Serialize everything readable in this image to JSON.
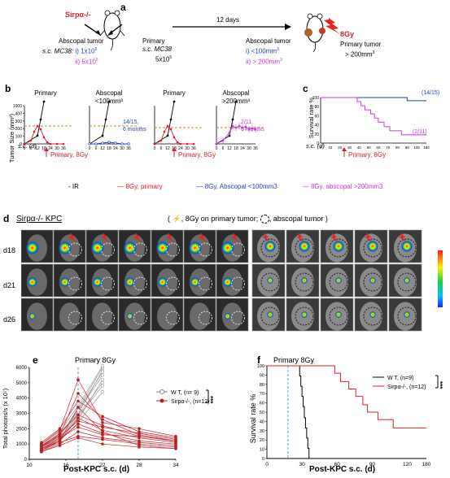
{
  "panel_a": {
    "label": "a",
    "strain": "Sirpα-/-",
    "days": "12 days",
    "left": {
      "line1": "Abscopal tumor",
      "sc_prefix": "s.c. MC38:",
      "opt1": "i) 1x10",
      "opt1_exp": "5",
      "opt2": "ii) 5x10",
      "opt2_exp": "5"
    },
    "mid": {
      "line1": "Primary",
      "line2": "s.c. MC38",
      "line3": "5x10",
      "line3_exp": "5"
    },
    "right": {
      "line1": "Abscopal tumor",
      "opt1": "i) <100mm",
      "opt1_exp": "3",
      "opt2": "ii) > 200mm",
      "opt2_exp": "3"
    },
    "radiation": "8Gy",
    "primary": {
      "line1": "Primary tumor",
      "line2": "> 200mm",
      "line2_exp": "3"
    }
  },
  "panel_b": {
    "label": "b",
    "ylabel": "Tumor Size (mm³)",
    "xlabel": "s.c. (d)",
    "groups": [
      {
        "title1": "Primary",
        "title2": ""
      },
      {
        "title1": "Abscopal",
        "title2": "<100mm³"
      },
      {
        "title1": "Primary",
        "title2": ""
      },
      {
        "title1": "Abscopal",
        "title2": ">200mm³"
      }
    ],
    "note1": "14/15,",
    "note1b": "6 months",
    "note2": "2/11,",
    "note2b": "6 months",
    "arrow_label": "Primary, 8Gy",
    "yticks": [
      "0",
      "100",
      "200",
      "300",
      "400",
      "1000"
    ],
    "xticks": [
      "0",
      "6",
      "12",
      "18",
      "24",
      "30",
      "36"
    ]
  },
  "panel_c": {
    "label": "c",
    "ylabel": "Survival rate %",
    "xlabel": "s.c. (d)",
    "arrow_label": "Primary, 8Gy",
    "note_blue": "(14/15)",
    "note_mag": "(2/11)",
    "yticks": [
      "0",
      "20",
      "40",
      "60",
      "80",
      "100"
    ],
    "xticks": [
      "0",
      "10",
      "20",
      "30",
      "40",
      "50",
      "60",
      "70",
      "80",
      "90",
      "100",
      "180"
    ]
  },
  "legend_bc": [
    {
      "label": "- IR",
      "color": "#000000"
    },
    {
      "label": "8Gy, primary",
      "color": "#d6202a"
    },
    {
      "label": "8Gy, Abscopal <100mm3",
      "color": "#1f3fbf"
    },
    {
      "label": "8Gy, abscopal >200mm3",
      "color": "#c23bd6"
    }
  ],
  "panel_d": {
    "label": "d",
    "title": "Sirpα-/- KPC",
    "legend_mid": ", 8Gy on primary tumor;",
    "legend_end": ", abscopal tumor )",
    "legend_open": "(",
    "rows": [
      "d18",
      "d21",
      "d26"
    ]
  },
  "panel_e": {
    "label": "e",
    "title": "Primary 8Gy",
    "ylabel": "Total photons/s (x 10⁷)",
    "xlabel": "Post-KPC s.c. (d)",
    "legend": [
      {
        "label": "W T,  (n= 9)"
      },
      {
        "label": "Sirpα-/-,  (n=12)"
      }
    ],
    "signif": "***",
    "yticks": [
      "0",
      "1000",
      "2000",
      "3000",
      "4000",
      "5000",
      "6000"
    ],
    "xticks": [
      "10",
      "16",
      "22",
      "28",
      "34"
    ]
  },
  "panel_f": {
    "label": "f",
    "title": "Primary 8Gy",
    "ylabel": "Survival rate %",
    "xlabel": "Post-KPC s.c. (d)",
    "legend": [
      {
        "label": "W T,  (n=9)"
      },
      {
        "label": "Sirpα-/-,  (n=12)"
      }
    ],
    "signif": "***",
    "yticks": [
      "0",
      "10",
      "20",
      "30",
      "40",
      "50",
      "60",
      "70",
      "80",
      "90",
      "100"
    ],
    "xticks": [
      "0",
      "30",
      "60",
      "90",
      "120",
      "180"
    ]
  }
}
